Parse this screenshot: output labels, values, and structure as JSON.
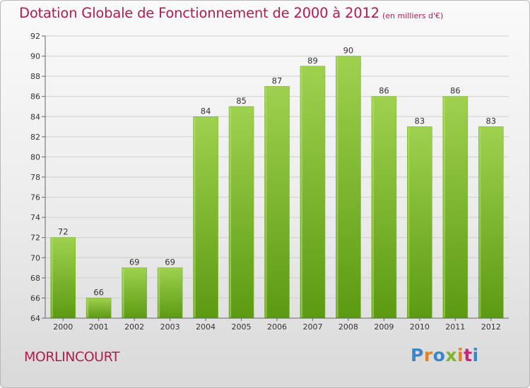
{
  "header": {
    "title": "Dotation Globale de Fonctionnement de 2000 à 2012",
    "subtitle": "(en milliers d'€)"
  },
  "footer": {
    "commune": "MORLINCOURT",
    "logo_text": "Proxiti",
    "logo_colors": [
      "#3a86c8",
      "#e2841c",
      "#3a86c8",
      "#7cb82b",
      "#e2841c",
      "#c8267a",
      "#3a86c8"
    ]
  },
  "colors": {
    "bar_top": "#9fd14f",
    "bar_bottom": "#5c9a12",
    "title": "#b01d4d",
    "grid": "#cfcfcf"
  },
  "chart_data": {
    "type": "bar",
    "categories": [
      "2000",
      "2001",
      "2002",
      "2003",
      "2004",
      "2005",
      "2006",
      "2007",
      "2008",
      "2009",
      "2010",
      "2011",
      "2012"
    ],
    "values": [
      72,
      66,
      69,
      69,
      84,
      85,
      87,
      89,
      90,
      86,
      83,
      86,
      83
    ],
    "title": "Dotation Globale de Fonctionnement de 2000 à 2012",
    "subtitle": "(en milliers d'€)",
    "xlabel": "",
    "ylabel": "",
    "ylim": [
      64,
      92
    ],
    "yticks": [
      64,
      66,
      68,
      70,
      72,
      74,
      76,
      78,
      80,
      82,
      84,
      86,
      88,
      90,
      92
    ],
    "grid": true,
    "data_labels": true
  }
}
